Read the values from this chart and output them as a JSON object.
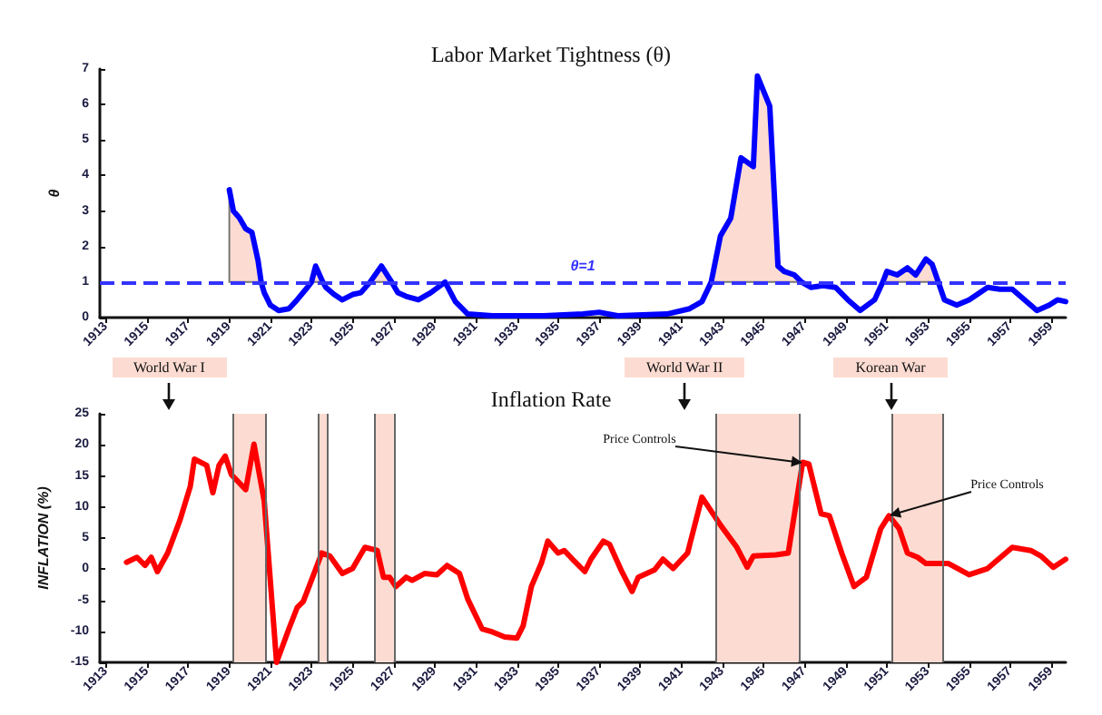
{
  "chart_data": [
    {
      "type": "line",
      "title": "Labor Market Tightness (θ)",
      "ylabel": "θ",
      "xlim": [
        1912.7,
        1959.7
      ],
      "xticks": [
        1913,
        1915,
        1917,
        1919,
        1921,
        1923,
        1925,
        1927,
        1929,
        1931,
        1933,
        1935,
        1937,
        1939,
        1941,
        1943,
        1945,
        1947,
        1949,
        1951,
        1953,
        1955,
        1957,
        1959
      ],
      "ylim": [
        0,
        7
      ],
      "yticks": [
        0,
        1,
        2,
        3,
        4,
        5,
        6,
        7
      ],
      "marker": "none",
      "ref_lines": [
        {
          "axis": "y",
          "value": 1,
          "label": "θ=1",
          "color": "#3333ff",
          "line_style": "dashed"
        }
      ],
      "series": [
        {
          "color": "#0000ff",
          "x": [
            1919.0,
            1919.2,
            1919.5,
            1919.8,
            1920.1,
            1920.4,
            1920.55,
            1920.7,
            1921.0,
            1921.4,
            1921.9,
            1922.3,
            1922.8,
            1923.0,
            1923.2,
            1923.55,
            1923.7,
            1924.1,
            1924.5,
            1925.0,
            1925.4,
            1925.85,
            1926.4,
            1926.9,
            1927.2,
            1927.6,
            1928.2,
            1928.8,
            1929.5,
            1930.0,
            1930.6,
            1931.8,
            1934.3,
            1936.2,
            1937.0,
            1937.9,
            1940.3,
            1941.4,
            1942.0,
            1942.45,
            1942.9,
            1943.4,
            1943.9,
            1944.5,
            1944.7,
            1945.3,
            1945.7,
            1946.0,
            1946.5,
            1946.85,
            1947.3,
            1947.9,
            1948.5,
            1949.1,
            1949.7,
            1950.4,
            1950.8,
            1951.0,
            1951.5,
            1952.0,
            1952.4,
            1952.9,
            1953.2,
            1953.5,
            1953.8,
            1954.4,
            1955.0,
            1955.9,
            1956.5,
            1957.1,
            1957.7,
            1958.3,
            1958.9,
            1959.3,
            1959.7
          ],
          "values": [
            3.6,
            3.0,
            2.8,
            2.5,
            2.4,
            1.6,
            1.0,
            0.7,
            0.35,
            0.2,
            0.25,
            0.5,
            0.85,
            1.0,
            1.45,
            1.0,
            0.85,
            0.65,
            0.5,
            0.65,
            0.7,
            1.0,
            1.45,
            1.0,
            0.7,
            0.6,
            0.5,
            0.7,
            1.0,
            0.45,
            0.1,
            0.05,
            0.05,
            0.1,
            0.15,
            0.05,
            0.1,
            0.25,
            0.45,
            1.0,
            2.3,
            2.8,
            4.5,
            4.25,
            6.8,
            5.95,
            1.45,
            1.3,
            1.2,
            1.0,
            0.85,
            0.9,
            0.85,
            0.5,
            0.2,
            0.5,
            1.0,
            1.3,
            1.2,
            1.4,
            1.2,
            1.65,
            1.5,
            1.0,
            0.5,
            0.35,
            0.5,
            0.85,
            0.8,
            0.8,
            0.5,
            0.2,
            0.35,
            0.5,
            0.45
          ],
          "lower": [
            1,
            1,
            1,
            1,
            1,
            1,
            1,
            null,
            null,
            null,
            null,
            null,
            null,
            1,
            1,
            1,
            null,
            null,
            null,
            null,
            null,
            1,
            1,
            1,
            null,
            null,
            null,
            null,
            null,
            null,
            null,
            null,
            null,
            null,
            null,
            null,
            null,
            null,
            null,
            1,
            1,
            1,
            1,
            1,
            1,
            1,
            1,
            1,
            1,
            1,
            null,
            null,
            null,
            null,
            null,
            null,
            1,
            1,
            1,
            1,
            1,
            1,
            1,
            1,
            null,
            null,
            null,
            null,
            null,
            null,
            null,
            null,
            null,
            null,
            null
          ],
          "upper": [
            3.6,
            3.0,
            2.8,
            2.5,
            2.4,
            1.6,
            1.0,
            null,
            null,
            null,
            null,
            null,
            null,
            1.0,
            1.45,
            1.0,
            null,
            null,
            null,
            null,
            null,
            1.0,
            1.45,
            1.0,
            null,
            null,
            null,
            null,
            null,
            null,
            null,
            null,
            null,
            null,
            null,
            null,
            null,
            null,
            null,
            1.0,
            2.3,
            2.8,
            4.5,
            4.25,
            6.8,
            5.95,
            1.45,
            1.3,
            1.2,
            1.0,
            null,
            null,
            null,
            null,
            null,
            null,
            1.0,
            1.3,
            1.2,
            1.4,
            1.2,
            1.65,
            1.5,
            1.0,
            null,
            null,
            null,
            null,
            null,
            null,
            null,
            null,
            null,
            null,
            null
          ]
        }
      ]
    },
    {
      "type": "line",
      "title": "Inflation Rate",
      "ylabel": "INFLATION (%)",
      "xlim": [
        1912.7,
        1959.7
      ],
      "xticks": [
        1913,
        1915,
        1917,
        1919,
        1921,
        1923,
        1925,
        1927,
        1929,
        1931,
        1933,
        1935,
        1937,
        1939,
        1941,
        1943,
        1945,
        1947,
        1949,
        1951,
        1953,
        1955,
        1957,
        1959
      ],
      "ylim": [
        -15,
        25
      ],
      "yticks": [
        -15,
        -10,
        -5,
        0,
        5,
        10,
        15,
        20,
        25
      ],
      "marker": "none",
      "bands": [
        {
          "axis": "x",
          "from": 1919.2,
          "to": 1920.75,
          "color": "#fcdcd2"
        },
        {
          "axis": "x",
          "from": 1923.3,
          "to": 1923.75,
          "color": "#fcdcd2"
        },
        {
          "axis": "x",
          "from": 1926.05,
          "to": 1927.0,
          "color": "#fcdcd2"
        },
        {
          "axis": "x",
          "from": 1942.7,
          "to": 1946.7,
          "color": "#fcdcd2"
        },
        {
          "axis": "x",
          "from": 1951.2,
          "to": 1953.7,
          "color": "#fcdcd2"
        }
      ],
      "annotations": [
        "World War I",
        "World War II",
        {
          "text": "Korean War",
          "x": 1951.2,
          "y": 25
        },
        {
          "text": "Price Controls",
          "x": 1946.9,
          "y": 17.2
        },
        {
          "text": "Price Controls",
          "x": 1951.1,
          "y": 8.6
        }
      ],
      "series": [
        {
          "color": "#ff0000",
          "x": [
            1914.0,
            1914.5,
            1914.9,
            1915.2,
            1915.5,
            1916.0,
            1916.6,
            1917.1,
            1917.3,
            1917.9,
            1918.2,
            1918.5,
            1918.8,
            1919.1,
            1919.8,
            1920.2,
            1920.7,
            1921.3,
            1921.9,
            1922.3,
            1922.6,
            1923.1,
            1923.5,
            1923.9,
            1924.5,
            1925.0,
            1925.6,
            1926.2,
            1926.5,
            1926.8,
            1927.1,
            1927.6,
            1927.9,
            1928.5,
            1929.1,
            1929.6,
            1930.2,
            1930.6,
            1931.3,
            1931.8,
            1932.4,
            1933.0,
            1933.3,
            1933.7,
            1934.2,
            1934.5,
            1935.0,
            1935.3,
            1935.7,
            1936.3,
            1936.6,
            1937.2,
            1937.5,
            1938.1,
            1938.6,
            1938.9,
            1939.7,
            1940.1,
            1940.6,
            1941.3,
            1942.0,
            1942.9,
            1943.7,
            1944.2,
            1944.5,
            1945.6,
            1946.2,
            1946.9,
            1947.2,
            1947.8,
            1948.2,
            1948.8,
            1949.4,
            1950.0,
            1950.7,
            1951.1,
            1951.6,
            1952.0,
            1952.5,
            1952.9,
            1954.0,
            1955.0,
            1955.9,
            1957.1,
            1958.0,
            1958.5,
            1959.1,
            1959.7
          ],
          "values": [
            1.1,
            1.9,
            0.6,
            1.9,
            -0.4,
            2.6,
            7.9,
            13.3,
            17.7,
            16.7,
            12.3,
            16.7,
            18.2,
            15.2,
            12.8,
            20.1,
            10.9,
            -15,
            -9.6,
            -6.2,
            -5.2,
            -0.9,
            2.6,
            2.1,
            -0.7,
            0.1,
            3.5,
            3.0,
            -1.3,
            -1.3,
            -2.8,
            -1.3,
            -1.8,
            -0.7,
            -0.9,
            0.6,
            -0.7,
            -4.8,
            -9.6,
            -10.1,
            -10.9,
            -11.1,
            -9.1,
            -2.8,
            1.1,
            4.5,
            2.6,
            3.0,
            1.6,
            -0.4,
            1.6,
            4.5,
            4.0,
            -0.4,
            -3.6,
            -1.3,
            -0.1,
            1.6,
            0.1,
            2.6,
            11.6,
            7.1,
            3.5,
            0.3,
            2.1,
            2.3,
            2.6,
            17.2,
            16.9,
            8.9,
            8.6,
            2.6,
            -2.8,
            -1.3,
            6.5,
            8.6,
            6.5,
            2.6,
            1.9,
            0.9,
            0.9,
            -0.9,
            0.1,
            3.5,
            3.0,
            2.1,
            0.3,
            1.6
          ]
        }
      ]
    }
  ]
}
